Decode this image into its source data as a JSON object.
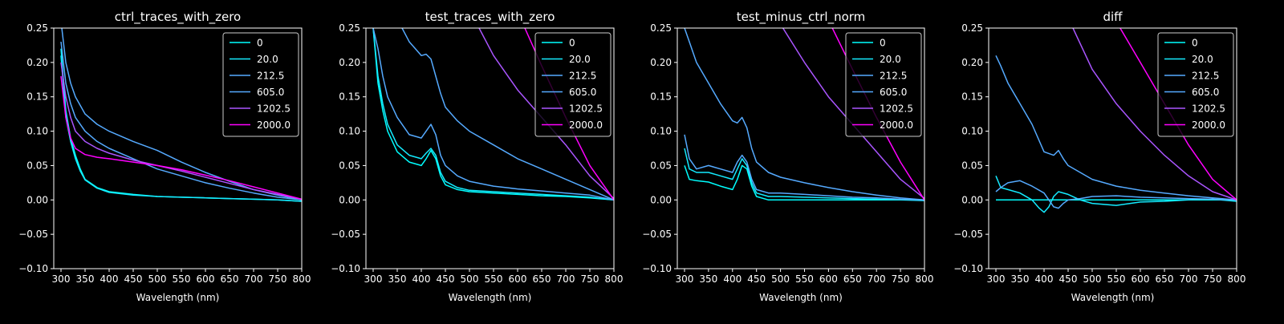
{
  "figure": {
    "background": "#000000",
    "foreground": "#ffffff"
  },
  "legend": {
    "placement": "upper-right",
    "labels": [
      "0",
      "20.0",
      "212.5",
      "605.0",
      "1202.5",
      "2000.0"
    ],
    "colors": [
      "#00ffff",
      "#14ebff",
      "#55aaff",
      "#55aaff",
      "#aa55ff",
      "#ff00ff"
    ]
  },
  "chart_data": [
    {
      "type": "line",
      "title": "ctrl_traces_with_zero",
      "xlabel": "Wavelength (nm)",
      "ylabel": "",
      "xlim": [
        285,
        800
      ],
      "ylim": [
        -0.1,
        0.25
      ],
      "xticks": [
        "300",
        "350",
        "400",
        "450",
        "500",
        "550",
        "600",
        "650",
        "700",
        "750",
        "800"
      ],
      "yticks": [
        "−0.10",
        "−0.05",
        "0.00",
        "0.05",
        "0.10",
        "0.15",
        "0.20",
        "0.25"
      ],
      "grid": false,
      "series": [
        {
          "name": "0",
          "color": "#00ffff",
          "x": [
            300,
            310,
            320,
            330,
            340,
            350,
            375,
            400,
            450,
            500,
            550,
            600,
            650,
            700,
            750,
            800
          ],
          "y": [
            0.22,
            0.13,
            0.09,
            0.065,
            0.045,
            0.03,
            0.018,
            0.012,
            0.008,
            0.005,
            0.004,
            0.003,
            0.002,
            0.001,
            0.0,
            -0.002
          ]
        },
        {
          "name": "20.0",
          "color": "#14ebff",
          "x": [
            300,
            310,
            320,
            330,
            340,
            350,
            375,
            400,
            450,
            500,
            550,
            600,
            650,
            700,
            750,
            800
          ],
          "y": [
            0.21,
            0.12,
            0.085,
            0.06,
            0.042,
            0.029,
            0.017,
            0.011,
            0.007,
            0.005,
            0.004,
            0.003,
            0.002,
            0.001,
            0.0,
            -0.002
          ]
        },
        {
          "name": "212.5",
          "color": "#55aaff",
          "x": [
            300,
            310,
            320,
            330,
            350,
            375,
            400,
            450,
            500,
            550,
            600,
            650,
            700,
            750,
            800
          ],
          "y": [
            0.23,
            0.17,
            0.14,
            0.12,
            0.1,
            0.085,
            0.075,
            0.06,
            0.045,
            0.035,
            0.025,
            0.017,
            0.01,
            0.004,
            0.0
          ]
        },
        {
          "name": "605.0",
          "color": "#55aaff",
          "x": [
            300,
            310,
            320,
            330,
            350,
            375,
            400,
            450,
            500,
            550,
            600,
            650,
            700,
            750,
            800
          ],
          "y": [
            0.26,
            0.2,
            0.17,
            0.15,
            0.125,
            0.11,
            0.1,
            0.085,
            0.072,
            0.055,
            0.04,
            0.027,
            0.015,
            0.007,
            0.0
          ]
        },
        {
          "name": "1202.5",
          "color": "#aa55ff",
          "x": [
            300,
            310,
            320,
            330,
            350,
            375,
            400,
            450,
            500,
            550,
            600,
            650,
            700,
            750,
            800
          ],
          "y": [
            0.2,
            0.15,
            0.12,
            0.1,
            0.085,
            0.075,
            0.068,
            0.058,
            0.05,
            0.042,
            0.033,
            0.024,
            0.015,
            0.008,
            0.001
          ]
        },
        {
          "name": "2000.0",
          "color": "#ff00ff",
          "x": [
            300,
            310,
            320,
            330,
            350,
            375,
            400,
            450,
            500,
            550,
            600,
            650,
            700,
            750,
            800
          ],
          "y": [
            0.18,
            0.12,
            0.09,
            0.075,
            0.066,
            0.062,
            0.06,
            0.055,
            0.05,
            0.044,
            0.036,
            0.028,
            0.019,
            0.01,
            0.001
          ]
        }
      ]
    },
    {
      "type": "line",
      "title": "test_traces_with_zero",
      "xlabel": "Wavelength (nm)",
      "ylabel": "",
      "xlim": [
        285,
        800
      ],
      "ylim": [
        -0.1,
        0.25
      ],
      "xticks": [
        "300",
        "350",
        "400",
        "450",
        "500",
        "550",
        "600",
        "650",
        "700",
        "750",
        "800"
      ],
      "yticks": [
        "−0.10",
        "−0.05",
        "0.00",
        "0.05",
        "0.10",
        "0.15",
        "0.20",
        "0.25"
      ],
      "grid": false,
      "series": [
        {
          "name": "0",
          "color": "#00ffff",
          "x": [
            300,
            310,
            320,
            330,
            350,
            375,
            400,
            410,
            420,
            430,
            440,
            450,
            475,
            500,
            550,
            600,
            650,
            700,
            750,
            800
          ],
          "y": [
            0.25,
            0.17,
            0.13,
            0.1,
            0.07,
            0.055,
            0.05,
            0.06,
            0.072,
            0.06,
            0.035,
            0.022,
            0.015,
            0.012,
            0.01,
            0.008,
            0.006,
            0.005,
            0.003,
            0.0
          ]
        },
        {
          "name": "20.0",
          "color": "#14ebff",
          "x": [
            300,
            310,
            320,
            330,
            350,
            375,
            400,
            410,
            420,
            430,
            440,
            450,
            475,
            500,
            550,
            600,
            650,
            700,
            750,
            800
          ],
          "y": [
            0.25,
            0.18,
            0.14,
            0.11,
            0.08,
            0.065,
            0.06,
            0.068,
            0.075,
            0.065,
            0.04,
            0.027,
            0.018,
            0.014,
            0.012,
            0.01,
            0.008,
            0.006,
            0.004,
            0.0
          ]
        },
        {
          "name": "212.5",
          "color": "#55aaff",
          "x": [
            300,
            310,
            320,
            330,
            350,
            375,
            400,
            410,
            420,
            430,
            440,
            450,
            475,
            500,
            550,
            600,
            650,
            700,
            750,
            800
          ],
          "y": [
            0.25,
            0.22,
            0.18,
            0.15,
            0.12,
            0.095,
            0.09,
            0.1,
            0.11,
            0.095,
            0.065,
            0.05,
            0.035,
            0.027,
            0.02,
            0.016,
            0.013,
            0.01,
            0.007,
            0.0
          ]
        },
        {
          "name": "605.0",
          "color": "#55aaff",
          "x": [
            360,
            375,
            400,
            410,
            420,
            430,
            440,
            450,
            475,
            500,
            550,
            600,
            650,
            700,
            750,
            800
          ],
          "y": [
            0.25,
            0.23,
            0.21,
            0.212,
            0.205,
            0.18,
            0.155,
            0.135,
            0.115,
            0.1,
            0.08,
            0.06,
            0.045,
            0.03,
            0.015,
            0.0
          ]
        },
        {
          "name": "1202.5",
          "color": "#aa55ff",
          "x": [
            520,
            550,
            600,
            650,
            700,
            750,
            800
          ],
          "y": [
            0.25,
            0.21,
            0.16,
            0.12,
            0.08,
            0.035,
            0.002
          ]
        },
        {
          "name": "2000.0",
          "color": "#ff00ff",
          "x": [
            615,
            650,
            700,
            750,
            800
          ],
          "y": [
            0.25,
            0.195,
            0.12,
            0.05,
            0.0
          ]
        }
      ]
    },
    {
      "type": "line",
      "title": "test_minus_ctrl_norm",
      "xlabel": "Wavelength (nm)",
      "ylabel": "",
      "xlim": [
        285,
        800
      ],
      "ylim": [
        -0.1,
        0.25
      ],
      "xticks": [
        "300",
        "350",
        "400",
        "450",
        "500",
        "550",
        "600",
        "650",
        "700",
        "750",
        "800"
      ],
      "yticks": [
        "−0.10",
        "−0.05",
        "0.00",
        "0.05",
        "0.10",
        "0.15",
        "0.20",
        "0.25"
      ],
      "grid": false,
      "series": [
        {
          "name": "0",
          "color": "#00ffff",
          "x": [
            300,
            310,
            325,
            350,
            375,
            400,
            410,
            420,
            430,
            440,
            450,
            475,
            500,
            550,
            600,
            650,
            700,
            750,
            800
          ],
          "y": [
            0.05,
            0.03,
            0.028,
            0.026,
            0.02,
            0.015,
            0.03,
            0.05,
            0.045,
            0.02,
            0.005,
            0.0,
            0.0,
            0.0,
            0.0,
            0.0,
            0.0,
            0.0,
            0.0
          ]
        },
        {
          "name": "20.0",
          "color": "#14ebff",
          "x": [
            300,
            310,
            325,
            350,
            375,
            400,
            410,
            420,
            430,
            440,
            450,
            475,
            500,
            550,
            600,
            650,
            700,
            750,
            800
          ],
          "y": [
            0.075,
            0.045,
            0.04,
            0.04,
            0.035,
            0.03,
            0.045,
            0.06,
            0.05,
            0.025,
            0.01,
            0.005,
            0.005,
            0.004,
            0.003,
            0.002,
            0.001,
            0.0,
            -0.001
          ]
        },
        {
          "name": "212.5",
          "color": "#55aaff",
          "x": [
            300,
            310,
            325,
            350,
            375,
            400,
            410,
            420,
            430,
            440,
            450,
            475,
            500,
            550,
            600,
            650,
            700,
            750,
            800
          ],
          "y": [
            0.095,
            0.06,
            0.045,
            0.05,
            0.045,
            0.04,
            0.055,
            0.065,
            0.055,
            0.03,
            0.015,
            0.01,
            0.01,
            0.008,
            0.006,
            0.004,
            0.003,
            0.001,
            0.0
          ]
        },
        {
          "name": "605.0",
          "color": "#55aaff",
          "x": [
            300,
            310,
            325,
            350,
            375,
            400,
            410,
            420,
            430,
            440,
            450,
            475,
            500,
            550,
            600,
            650,
            700,
            750,
            800
          ],
          "y": [
            0.25,
            0.23,
            0.2,
            0.17,
            0.14,
            0.115,
            0.112,
            0.12,
            0.105,
            0.075,
            0.055,
            0.04,
            0.033,
            0.025,
            0.018,
            0.012,
            0.007,
            0.003,
            0.0
          ]
        },
        {
          "name": "1202.5",
          "color": "#aa55ff",
          "x": [
            505,
            550,
            600,
            650,
            700,
            750,
            800
          ],
          "y": [
            0.25,
            0.2,
            0.15,
            0.11,
            0.07,
            0.03,
            0.002
          ]
        },
        {
          "name": "2000.0",
          "color": "#ff00ff",
          "x": [
            608,
            650,
            700,
            750,
            800
          ],
          "y": [
            0.25,
            0.19,
            0.12,
            0.055,
            0.0
          ]
        }
      ]
    },
    {
      "type": "line",
      "title": "diff",
      "xlabel": "Wavelength (nm)",
      "ylabel": "",
      "xlim": [
        285,
        800
      ],
      "ylim": [
        -0.1,
        0.25
      ],
      "xticks": [
        "300",
        "350",
        "400",
        "450",
        "500",
        "550",
        "600",
        "650",
        "700",
        "750",
        "800"
      ],
      "yticks": [
        "−0.10",
        "−0.05",
        "0.00",
        "0.05",
        "0.10",
        "0.15",
        "0.20",
        "0.25"
      ],
      "grid": false,
      "series": [
        {
          "name": "0",
          "color": "#00ffff",
          "x": [
            300,
            800
          ],
          "y": [
            0.0,
            0.0
          ]
        },
        {
          "name": "20.0",
          "color": "#14ebff",
          "x": [
            300,
            310,
            325,
            350,
            375,
            390,
            400,
            410,
            420,
            430,
            450,
            475,
            500,
            550,
            600,
            650,
            700,
            750,
            800
          ],
          "y": [
            0.035,
            0.018,
            0.015,
            0.01,
            0.0,
            -0.012,
            -0.018,
            -0.01,
            0.005,
            0.012,
            0.008,
            0.0,
            -0.005,
            -0.008,
            -0.003,
            -0.002,
            0.0,
            0.001,
            -0.002
          ]
        },
        {
          "name": "212.5",
          "color": "#55aaff",
          "x": [
            300,
            310,
            325,
            350,
            375,
            400,
            410,
            420,
            430,
            440,
            450,
            475,
            500,
            550,
            600,
            650,
            700,
            750,
            800
          ],
          "y": [
            0.012,
            0.018,
            0.025,
            0.028,
            0.02,
            0.01,
            0.0,
            -0.01,
            -0.012,
            -0.005,
            0.0,
            0.002,
            0.005,
            0.006,
            0.004,
            0.003,
            0.002,
            0.001,
            0.0
          ]
        },
        {
          "name": "605.0",
          "color": "#55aaff",
          "x": [
            300,
            310,
            325,
            350,
            375,
            400,
            420,
            430,
            440,
            450,
            475,
            500,
            550,
            600,
            650,
            700,
            750,
            800
          ],
          "y": [
            0.21,
            0.195,
            0.17,
            0.14,
            0.11,
            0.07,
            0.065,
            0.072,
            0.06,
            0.05,
            0.04,
            0.03,
            0.02,
            0.014,
            0.01,
            0.006,
            0.003,
            0.0
          ]
        },
        {
          "name": "1202.5",
          "color": "#aa55ff",
          "x": [
            460,
            500,
            550,
            600,
            650,
            700,
            750,
            800
          ],
          "y": [
            0.25,
            0.19,
            0.14,
            0.1,
            0.065,
            0.035,
            0.012,
            0.0
          ]
        },
        {
          "name": "2000.0",
          "color": "#ff00ff",
          "x": [
            558,
            600,
            650,
            700,
            750,
            800
          ],
          "y": [
            0.25,
            0.2,
            0.14,
            0.08,
            0.03,
            0.0
          ]
        }
      ]
    }
  ]
}
